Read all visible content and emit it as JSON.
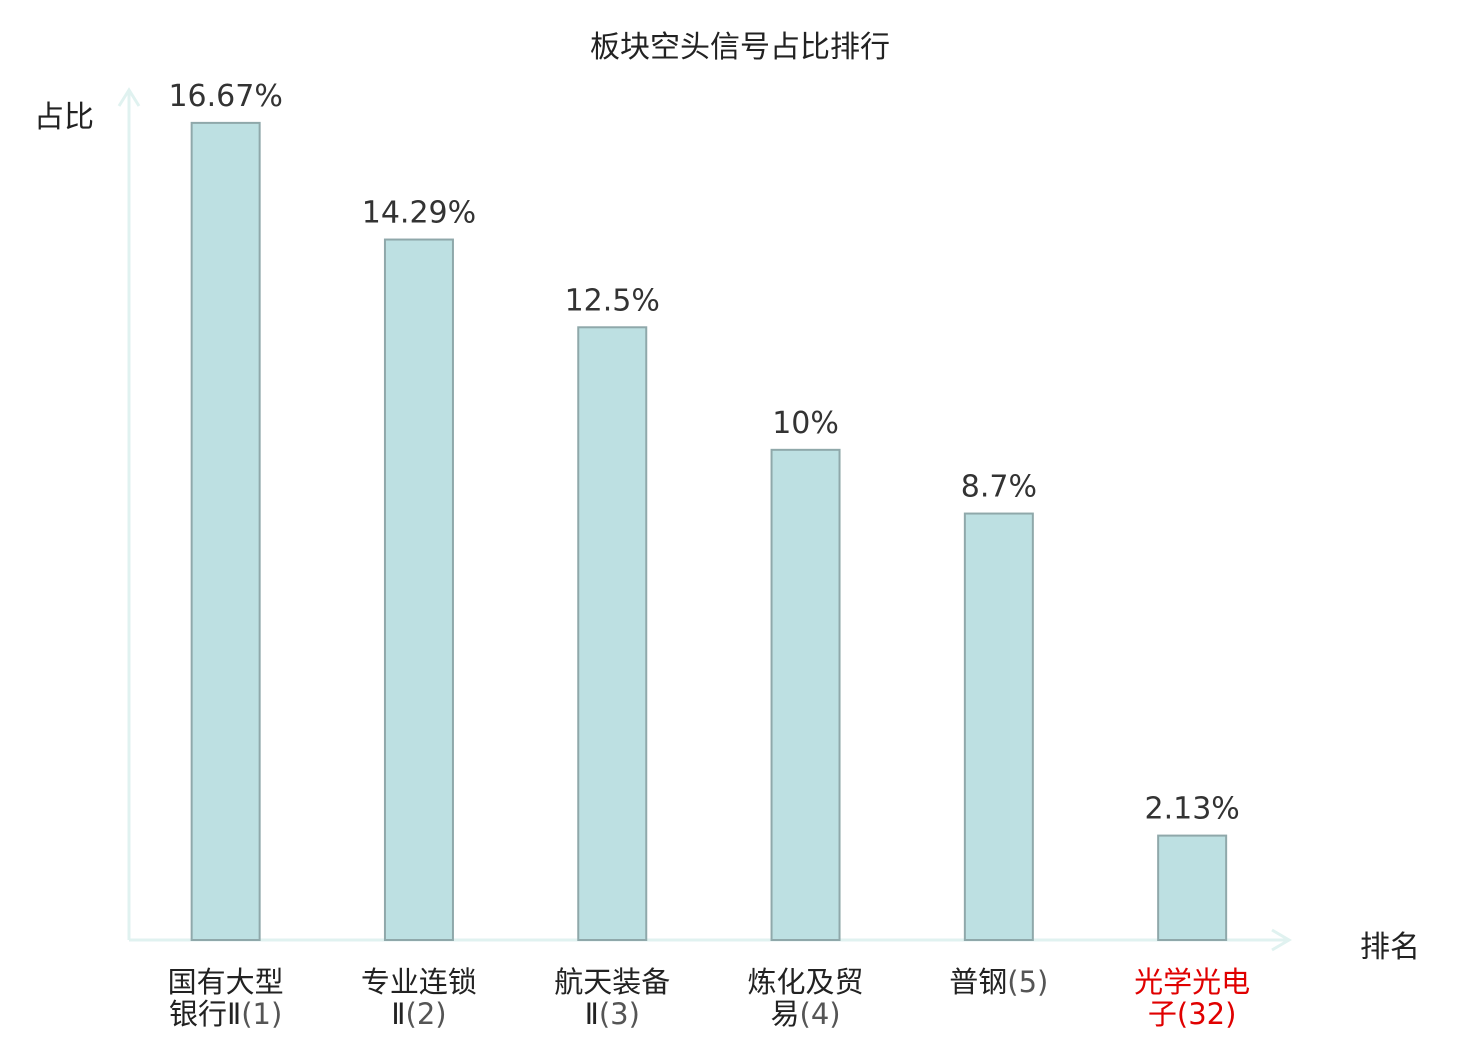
{
  "chart_data": {
    "type": "bar",
    "title": "板块空头信号占比排行",
    "ylabel": "占比",
    "xlabel": "排名",
    "categories": [
      {
        "name_lines": [
          "国有大型",
          "银行Ⅱ"
        ],
        "rank": "(1)",
        "highlight": false
      },
      {
        "name_lines": [
          "专业连锁",
          "Ⅱ"
        ],
        "rank": "(2)",
        "highlight": false
      },
      {
        "name_lines": [
          "航天装备",
          "Ⅱ"
        ],
        "rank": "(3)",
        "highlight": false
      },
      {
        "name_lines": [
          "炼化及贸",
          "易"
        ],
        "rank": "(4)",
        "highlight": false
      },
      {
        "name_lines": [
          "普钢"
        ],
        "rank": "(5)",
        "highlight": false
      },
      {
        "name_lines": [
          "光学光电",
          "子"
        ],
        "rank": "(32)",
        "highlight": true
      }
    ],
    "values": [
      16.67,
      14.29,
      12.5,
      10,
      8.7,
      2.13
    ],
    "value_labels": [
      "16.67%",
      "14.29%",
      "12.5%",
      "10%",
      "8.7%",
      "2.13%"
    ],
    "ylim": [
      0,
      17.3
    ],
    "grid": false,
    "colors": {
      "bar_fill": "#bde0e2",
      "bar_stroke": "#8fa8aa",
      "axis": "#e0f2f0",
      "highlight_text": "#e00000",
      "text": "#222222"
    }
  }
}
